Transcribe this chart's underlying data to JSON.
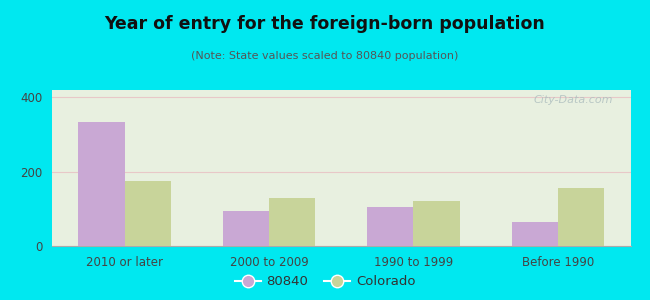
{
  "title": "Year of entry for the foreign-born population",
  "subtitle": "(Note: State values scaled to 80840 population)",
  "categories": [
    "2010 or later",
    "2000 to 2009",
    "1990 to 1999",
    "Before 1990"
  ],
  "values_80840": [
    335,
    95,
    105,
    65
  ],
  "values_colorado": [
    175,
    130,
    120,
    155
  ],
  "color_80840": "#c9a8d4",
  "color_colorado": "#c8d49a",
  "background_outer": "#00e8f0",
  "background_inner": "#e8f0e0",
  "ylim": [
    0,
    420
  ],
  "yticks": [
    0,
    200,
    400
  ],
  "bar_width": 0.32,
  "legend_labels": [
    "80840",
    "Colorado"
  ],
  "watermark": "City-Data.com",
  "title_color": "#111111",
  "subtitle_color": "#555555",
  "tick_color": "#444444"
}
